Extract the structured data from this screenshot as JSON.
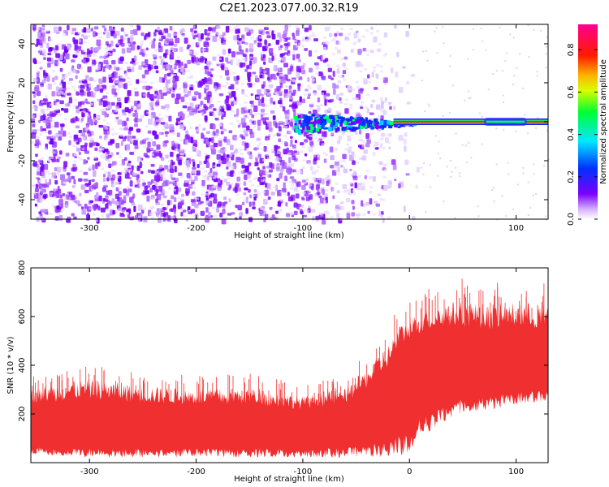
{
  "title": "C2E1.2023.077.00.32.R19",
  "chart_data": [
    {
      "type": "heatmap",
      "title": "",
      "xlabel": "Height of straight line (km)",
      "ylabel": "Frequency (Hz)",
      "xlim": [
        -355,
        130
      ],
      "ylim": [
        -50,
        50
      ],
      "xticks": [
        -300,
        -200,
        -100,
        0,
        100
      ],
      "yticks": [
        -40,
        -20,
        0,
        20,
        40
      ],
      "colorbar": {
        "label": "Normalized spectral amplitude",
        "range": [
          0,
          0.92
        ],
        "ticks": [
          0.0,
          0.2,
          0.4,
          0.6,
          0.8
        ],
        "colormap": "rainbow (white-violet-blue-cyan-green-yellow-orange-red-magenta)"
      },
      "features": [
        {
          "name": "broadband noise",
          "x_range": [
            -355,
            -20
          ],
          "frequency_range": [
            -50,
            50
          ],
          "amplitude_approx": 0.1
        },
        {
          "name": "carrier line",
          "x_range": [
            -110,
            130
          ],
          "frequency": 0,
          "amplitude_approx": 0.85
        }
      ]
    },
    {
      "type": "line",
      "title": "",
      "xlabel": "Height of straight line (km)",
      "ylabel": "SNR (10 * v/v)",
      "xlim": [
        -355,
        130
      ],
      "ylim": [
        0,
        800
      ],
      "xticks": [
        -300,
        -200,
        -100,
        0,
        100
      ],
      "yticks": [
        200,
        400,
        600,
        800
      ],
      "color": "#f03030",
      "envelope": {
        "x": [
          -355,
          -300,
          -250,
          -200,
          -150,
          -100,
          -60,
          -40,
          -20,
          -10,
          0,
          10,
          30,
          50,
          80,
          100,
          130
        ],
        "ymin": [
          30,
          20,
          20,
          20,
          20,
          20,
          20,
          20,
          20,
          20,
          40,
          100,
          150,
          200,
          220,
          240,
          250
        ],
        "ymax": [
          360,
          420,
          380,
          360,
          370,
          320,
          360,
          450,
          560,
          640,
          660,
          700,
          740,
          760,
          740,
          760,
          740
        ],
        "typical": [
          180,
          175,
          170,
          170,
          165,
          165,
          180,
          230,
          300,
          380,
          430,
          440,
          450,
          450,
          440,
          440,
          440
        ]
      }
    }
  ]
}
